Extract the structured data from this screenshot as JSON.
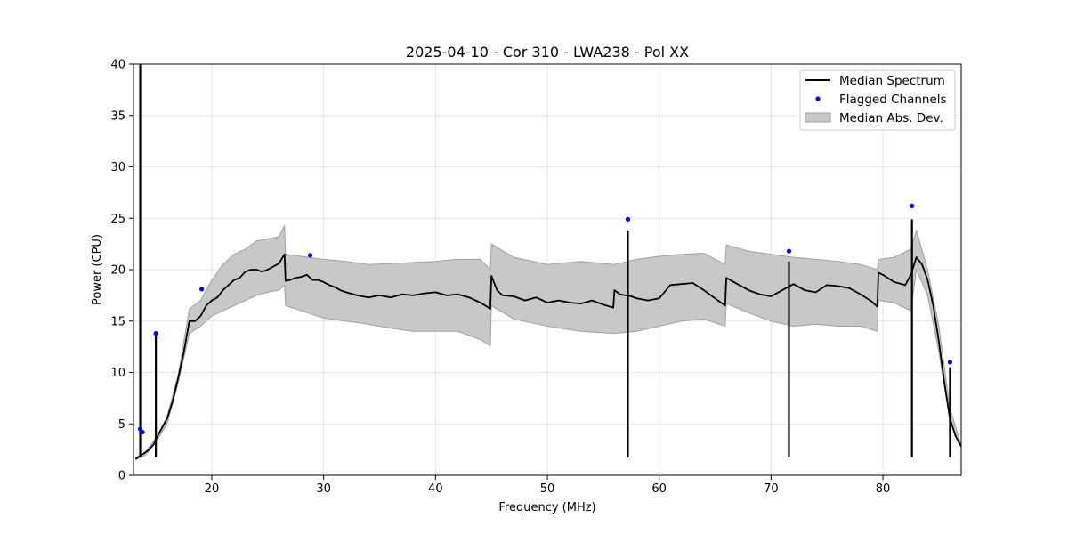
{
  "chart_data": {
    "type": "line",
    "title": "2025-04-10 - Cor 310 - LWA238 - Pol XX",
    "xlabel": "Frequency (MHz)",
    "ylabel": "Power (CPU)",
    "xlim": [
      13,
      87
    ],
    "ylim": [
      0,
      40
    ],
    "xticks": [
      20,
      30,
      40,
      50,
      60,
      70,
      80
    ],
    "yticks": [
      0,
      5,
      10,
      15,
      20,
      25,
      30,
      35,
      40
    ],
    "grid": true,
    "legend_position": "top-right",
    "colors": {
      "median": "#000000",
      "flagged": "#0000ff",
      "band_fill": "#c8c8c8",
      "band_edge": "#a0a0a0"
    },
    "series": [
      {
        "name": "Median Spectrum",
        "x": [
          13.2,
          13.6,
          13.9,
          14.3,
          14.8,
          15.0,
          15.5,
          16.0,
          16.5,
          17.0,
          17.5,
          18.0,
          18.5,
          19.0,
          19.5,
          20.0,
          20.5,
          21.0,
          21.5,
          22.0,
          22.5,
          23.0,
          23.5,
          24.0,
          24.5,
          25.0,
          25.5,
          26.0,
          26.5,
          26.6,
          27.0,
          27.5,
          28.0,
          28.5,
          29.0,
          29.5,
          30.0,
          30.5,
          31.0,
          31.5,
          32.0,
          33.0,
          34.0,
          35.0,
          36.0,
          37.0,
          38.0,
          39.0,
          40.0,
          41.0,
          42.0,
          43.0,
          44.0,
          44.9,
          45.0,
          45.5,
          46.0,
          47.0,
          48.0,
          49.0,
          50.0,
          51.0,
          52.0,
          53.0,
          54.0,
          55.0,
          55.9,
          56.0,
          56.5,
          57.0,
          57.5,
          58.0,
          59.0,
          60.0,
          61.0,
          62.0,
          63.0,
          64.0,
          65.0,
          65.9,
          66.0,
          67.0,
          68.0,
          69.0,
          70.0,
          71.0,
          72.0,
          73.0,
          74.0,
          75.0,
          76.0,
          77.0,
          78.0,
          79.0,
          79.5,
          79.6,
          80.0,
          81.0,
          82.0,
          82.5,
          83.0,
          83.5,
          84.0,
          84.5,
          85.0,
          85.5,
          86.0,
          86.5,
          87.0
        ],
        "values": [
          1.6,
          1.9,
          2.1,
          2.4,
          3.0,
          3.5,
          4.5,
          5.5,
          7.2,
          9.5,
          12.0,
          15.0,
          15.0,
          15.5,
          16.5,
          17.0,
          17.3,
          18.0,
          18.5,
          19.0,
          19.2,
          19.8,
          20.0,
          20.0,
          19.8,
          20.0,
          20.3,
          20.6,
          21.5,
          18.9,
          19.0,
          19.2,
          19.3,
          19.5,
          19.0,
          19.0,
          18.8,
          18.5,
          18.3,
          18.0,
          17.8,
          17.5,
          17.3,
          17.5,
          17.3,
          17.6,
          17.5,
          17.7,
          17.8,
          17.5,
          17.6,
          17.3,
          16.8,
          16.2,
          19.4,
          18.0,
          17.5,
          17.4,
          17.0,
          17.3,
          16.8,
          17.0,
          16.8,
          16.7,
          17.0,
          16.6,
          16.3,
          18.0,
          17.6,
          17.5,
          17.4,
          17.2,
          17.0,
          17.2,
          18.5,
          18.6,
          18.7,
          18.0,
          17.2,
          16.5,
          19.2,
          18.6,
          18.0,
          17.6,
          17.4,
          18.0,
          18.6,
          18.0,
          17.8,
          18.5,
          18.4,
          18.2,
          17.6,
          16.9,
          16.4,
          19.7,
          19.5,
          18.8,
          18.5,
          19.5,
          21.2,
          20.5,
          19.0,
          16.5,
          13.0,
          9.0,
          5.5,
          3.8,
          2.8
        ]
      },
      {
        "name": "Flagged Channels",
        "x": [
          13.6,
          13.8,
          15.0,
          19.1,
          28.8,
          57.2,
          71.6,
          82.6,
          86.0
        ],
        "values": [
          4.5,
          4.2,
          13.8,
          18.1,
          21.4,
          24.9,
          21.8,
          26.2,
          11.0
        ]
      },
      {
        "name": "Median Abs. Dev.",
        "x": [
          13.2,
          14.0,
          15.0,
          16.0,
          17.0,
          18.0,
          19.0,
          20.0,
          21.0,
          22.0,
          23.0,
          24.0,
          25.0,
          26.0,
          26.5,
          26.6,
          28.0,
          30.0,
          32.0,
          34.0,
          36.0,
          38.0,
          40.0,
          42.0,
          44.0,
          44.9,
          45.0,
          47.0,
          50.0,
          53.0,
          56.0,
          58.0,
          60.0,
          62.0,
          64.0,
          65.9,
          66.0,
          68.0,
          70.0,
          72.0,
          74.0,
          76.0,
          78.0,
          79.5,
          79.6,
          81.0,
          82.5,
          83.0,
          84.0,
          85.0,
          86.0,
          87.0
        ],
        "upper": [
          1.7,
          2.2,
          3.6,
          5.7,
          9.8,
          16.2,
          17.0,
          19.0,
          20.5,
          21.5,
          22.0,
          22.8,
          23.0,
          23.2,
          24.3,
          21.5,
          21.3,
          21.0,
          20.8,
          20.5,
          20.6,
          20.7,
          20.8,
          21.0,
          21.0,
          20.0,
          22.5,
          21.2,
          20.5,
          20.8,
          20.5,
          21.0,
          21.3,
          21.5,
          21.6,
          20.5,
          22.4,
          21.8,
          21.5,
          21.2,
          21.0,
          20.8,
          20.5,
          20.0,
          21.0,
          21.2,
          22.0,
          23.8,
          20.0,
          14.5,
          6.5,
          2.9
        ],
        "lower": [
          1.5,
          1.9,
          3.2,
          5.0,
          9.0,
          13.8,
          14.5,
          15.5,
          16.0,
          16.5,
          17.0,
          17.5,
          17.8,
          18.0,
          18.5,
          16.5,
          16.0,
          15.3,
          15.0,
          14.7,
          14.3,
          14.0,
          14.0,
          14.0,
          13.2,
          12.6,
          16.5,
          15.2,
          14.5,
          14.0,
          13.8,
          14.0,
          14.5,
          15.0,
          15.2,
          14.5,
          16.7,
          15.8,
          15.0,
          14.5,
          14.7,
          14.5,
          14.5,
          14.0,
          17.0,
          16.8,
          16.0,
          20.0,
          17.5,
          12.0,
          5.2,
          2.8
        ]
      }
    ],
    "spikes": [
      {
        "x": 13.6,
        "top": 40
      },
      {
        "x": 15.0,
        "top": 13.8
      },
      {
        "x": 57.2,
        "top": 23.8
      },
      {
        "x": 71.6,
        "top": 20.8
      },
      {
        "x": 82.6,
        "top": 24.9
      },
      {
        "x": 86.0,
        "top": 10.5
      }
    ]
  }
}
